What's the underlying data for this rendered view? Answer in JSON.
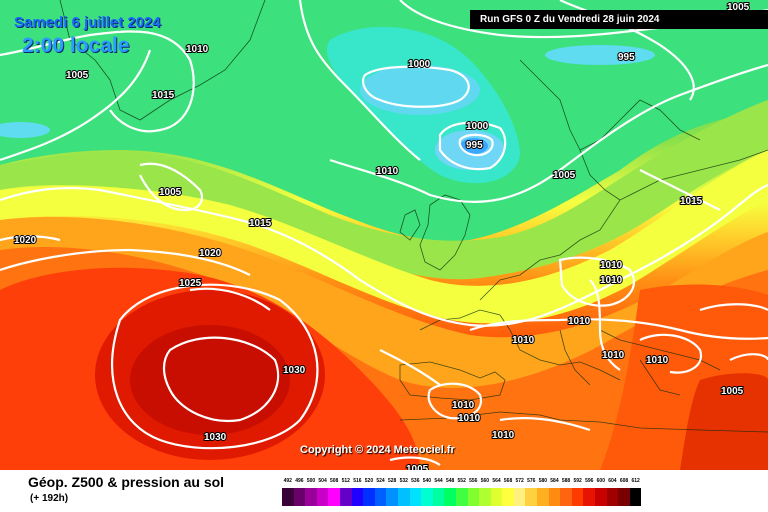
{
  "header": {
    "date": "Samedi 6 juillet 2024",
    "time": "2:00 locale",
    "run": "Run GFS 0 Z du Vendredi 28 juin 2024"
  },
  "copyright": "Copyright © 2024 Meteociel.fr",
  "footer": {
    "title": "Géop. Z500 & pression au sol",
    "subtitle": "(+ 192h)"
  },
  "isobar_labels": [
    "1005",
    "1010",
    "1015",
    "1005",
    "1000",
    "995",
    "1000",
    "995",
    "1010",
    "1005",
    "1005",
    "1015",
    "1020",
    "1020",
    "1015",
    "1025",
    "1010",
    "1010",
    "1010",
    "1010",
    "1010",
    "1010",
    "1030",
    "1030",
    "1010",
    "1010",
    "1010",
    "1005",
    "1005"
  ],
  "scale": {
    "labels": [
      "492",
      "496",
      "500",
      "504",
      "508",
      "512",
      "516",
      "520",
      "524",
      "528",
      "532",
      "536",
      "540",
      "544",
      "548",
      "552",
      "556",
      "560",
      "564",
      "568",
      "572",
      "576",
      "580",
      "584",
      "588",
      "592",
      "596",
      "600",
      "604",
      "608",
      "612"
    ],
    "colors": [
      "#3a003a",
      "#6a006a",
      "#9a009a",
      "#c800c8",
      "#ff00ff",
      "#6400c8",
      "#2000ff",
      "#0030ff",
      "#0060ff",
      "#0090ff",
      "#00c0ff",
      "#00e0ff",
      "#00ffd0",
      "#00ffa0",
      "#00ff60",
      "#40ff40",
      "#80ff30",
      "#b0ff30",
      "#e0ff30",
      "#ffff40",
      "#fff080",
      "#ffd040",
      "#ffb020",
      "#ff8c10",
      "#ff6410",
      "#ff3c00",
      "#e61400",
      "#c80000",
      "#a00000",
      "#780000",
      "#000000"
    ]
  }
}
